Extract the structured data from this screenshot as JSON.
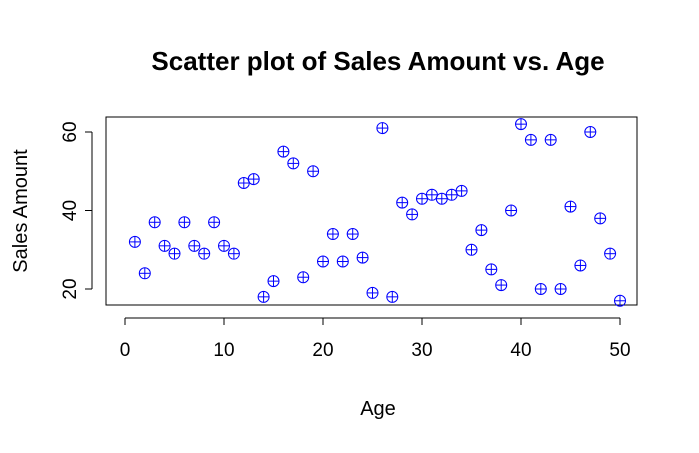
{
  "chart_data": {
    "type": "scatter",
    "title": "Scatter plot of Sales Amount vs. Age",
    "xlabel": "Age",
    "ylabel": "Sales Amount",
    "xlim": [
      0,
      50
    ],
    "ylim": [
      17,
      62
    ],
    "x_ticks": [
      "0",
      "10",
      "20",
      "30",
      "40",
      "50"
    ],
    "y_ticks": [
      "20",
      "40",
      "60"
    ],
    "marker_color": "#0000ff",
    "marker": "circle-plus",
    "grid": false,
    "legend": "none",
    "points": [
      {
        "x": 1,
        "y": 32
      },
      {
        "x": 2,
        "y": 24
      },
      {
        "x": 3,
        "y": 37
      },
      {
        "x": 4,
        "y": 31
      },
      {
        "x": 5,
        "y": 29
      },
      {
        "x": 6,
        "y": 37
      },
      {
        "x": 7,
        "y": 31
      },
      {
        "x": 8,
        "y": 29
      },
      {
        "x": 9,
        "y": 37
      },
      {
        "x": 10,
        "y": 31
      },
      {
        "x": 11,
        "y": 29
      },
      {
        "x": 12,
        "y": 47
      },
      {
        "x": 13,
        "y": 48
      },
      {
        "x": 14,
        "y": 18
      },
      {
        "x": 15,
        "y": 22
      },
      {
        "x": 16,
        "y": 55
      },
      {
        "x": 17,
        "y": 52
      },
      {
        "x": 18,
        "y": 23
      },
      {
        "x": 19,
        "y": 50
      },
      {
        "x": 20,
        "y": 27
      },
      {
        "x": 21,
        "y": 34
      },
      {
        "x": 22,
        "y": 27
      },
      {
        "x": 23,
        "y": 34
      },
      {
        "x": 24,
        "y": 28
      },
      {
        "x": 25,
        "y": 19
      },
      {
        "x": 26,
        "y": 61
      },
      {
        "x": 27,
        "y": 18
      },
      {
        "x": 28,
        "y": 42
      },
      {
        "x": 29,
        "y": 39
      },
      {
        "x": 30,
        "y": 43
      },
      {
        "x": 31,
        "y": 44
      },
      {
        "x": 32,
        "y": 43
      },
      {
        "x": 33,
        "y": 44
      },
      {
        "x": 34,
        "y": 45
      },
      {
        "x": 35,
        "y": 30
      },
      {
        "x": 36,
        "y": 35
      },
      {
        "x": 37,
        "y": 25
      },
      {
        "x": 38,
        "y": 21
      },
      {
        "x": 39,
        "y": 40
      },
      {
        "x": 40,
        "y": 62
      },
      {
        "x": 41,
        "y": 58
      },
      {
        "x": 42,
        "y": 20
      },
      {
        "x": 43,
        "y": 58
      },
      {
        "x": 44,
        "y": 20
      },
      {
        "x": 45,
        "y": 41
      },
      {
        "x": 46,
        "y": 26
      },
      {
        "x": 47,
        "y": 60
      },
      {
        "x": 48,
        "y": 38
      },
      {
        "x": 49,
        "y": 29
      },
      {
        "x": 50,
        "y": 17
      }
    ]
  }
}
